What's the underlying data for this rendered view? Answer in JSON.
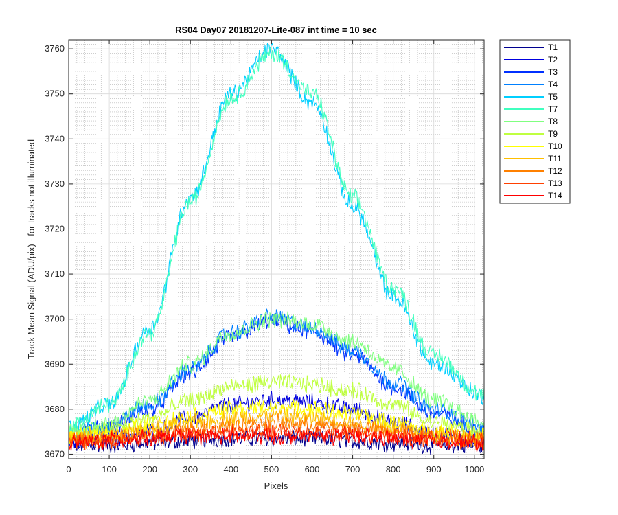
{
  "chart_data": {
    "type": "line",
    "title": "RS04 Day07 20181207-Lite-087 int time = 10 sec",
    "xlabel": "Pixels",
    "ylabel": "Track Mean Signal (ADU/pix) - for tracks not illuminated",
    "xlim": [
      0,
      1024
    ],
    "ylim": [
      3669,
      3762
    ],
    "xticks": [
      0,
      100,
      200,
      300,
      400,
      500,
      600,
      700,
      800,
      900,
      1000
    ],
    "yticks": [
      3670,
      3680,
      3690,
      3700,
      3710,
      3720,
      3730,
      3740,
      3750,
      3760
    ],
    "grid": true,
    "minor_grid": true,
    "legend_position": "outside-top-right",
    "series": [
      {
        "name": "T1",
        "color": "#00008f",
        "x": [
          0,
          100,
          200,
          300,
          400,
          500,
          600,
          700,
          800,
          900,
          1024
        ],
        "values": [
          3672,
          3672,
          3672.5,
          3673,
          3673.5,
          3673.5,
          3673.5,
          3673,
          3672.5,
          3672,
          3672
        ]
      },
      {
        "name": "T2",
        "color": "#0000df",
        "x": [
          0,
          100,
          200,
          300,
          400,
          500,
          600,
          700,
          800,
          900,
          1024
        ],
        "values": [
          3673,
          3673.5,
          3675,
          3678,
          3681,
          3682,
          3681.5,
          3680,
          3677,
          3674.5,
          3673
        ]
      },
      {
        "name": "T3",
        "color": "#0030ff",
        "x": [
          0,
          100,
          200,
          300,
          400,
          500,
          600,
          700,
          800,
          900,
          1024
        ],
        "values": [
          3674,
          3676,
          3680,
          3688,
          3696,
          3699.5,
          3697,
          3692,
          3685,
          3679,
          3675
        ]
      },
      {
        "name": "T4",
        "color": "#0080ff",
        "x": [
          0,
          100,
          200,
          300,
          400,
          500,
          600,
          700,
          800,
          900,
          1024
        ],
        "values": [
          3674.5,
          3676.5,
          3681,
          3689,
          3697,
          3700.5,
          3698,
          3693,
          3686,
          3680,
          3676
        ]
      },
      {
        "name": "T5",
        "color": "#00cfff",
        "x": [
          0,
          100,
          200,
          300,
          400,
          500,
          600,
          700,
          800,
          900,
          1024
        ],
        "values": [
          3676,
          3681,
          3698,
          3727,
          3750,
          3760,
          3748,
          3725,
          3705,
          3690,
          3683
        ]
      },
      {
        "name": "T7",
        "color": "#40ffbf",
        "x": [
          0,
          100,
          200,
          300,
          400,
          500,
          600,
          700,
          800,
          900,
          1024
        ],
        "values": [
          3676,
          3681,
          3697,
          3726,
          3749,
          3759,
          3750,
          3727,
          3707,
          3692,
          3683
        ]
      },
      {
        "name": "T8",
        "color": "#80ff80",
        "x": [
          0,
          100,
          200,
          300,
          400,
          500,
          600,
          700,
          800,
          900,
          1024
        ],
        "values": [
          3675,
          3677,
          3682,
          3690,
          3697,
          3700,
          3699,
          3695,
          3689,
          3682,
          3677
        ]
      },
      {
        "name": "T9",
        "color": "#bfff40",
        "x": [
          0,
          100,
          200,
          300,
          400,
          500,
          600,
          700,
          800,
          900,
          1024
        ],
        "values": [
          3674,
          3675.5,
          3678,
          3682,
          3685,
          3686,
          3685.5,
          3684,
          3681,
          3677,
          3675
        ]
      },
      {
        "name": "T10",
        "color": "#ffff00",
        "x": [
          0,
          100,
          200,
          300,
          400,
          500,
          600,
          700,
          800,
          900,
          1024
        ],
        "values": [
          3673.5,
          3674.5,
          3676.5,
          3678.5,
          3680,
          3680.5,
          3680,
          3679,
          3677,
          3675,
          3674
        ]
      },
      {
        "name": "T11",
        "color": "#ffbf00",
        "x": [
          0,
          100,
          200,
          300,
          400,
          500,
          600,
          700,
          800,
          900,
          1024
        ],
        "values": [
          3673.5,
          3674,
          3675.5,
          3677,
          3678,
          3678.5,
          3678,
          3677,
          3676,
          3674.5,
          3673.5
        ]
      },
      {
        "name": "T12",
        "color": "#ff8000",
        "x": [
          0,
          100,
          200,
          300,
          400,
          500,
          600,
          700,
          800,
          900,
          1024
        ],
        "values": [
          3673,
          3673.5,
          3674.5,
          3675.5,
          3676.5,
          3677,
          3676.5,
          3676,
          3675,
          3674,
          3673
        ]
      },
      {
        "name": "T13",
        "color": "#ff4000",
        "x": [
          0,
          100,
          200,
          300,
          400,
          500,
          600,
          700,
          800,
          900,
          1024
        ],
        "values": [
          3673,
          3673,
          3674,
          3674.5,
          3675,
          3675,
          3675,
          3674.5,
          3674,
          3673.5,
          3673
        ]
      },
      {
        "name": "T14",
        "color": "#ff0000",
        "x": [
          0,
          100,
          200,
          300,
          400,
          500,
          600,
          700,
          800,
          900,
          1024
        ],
        "values": [
          3672.5,
          3673,
          3673.5,
          3674,
          3674,
          3674,
          3674,
          3674,
          3673.5,
          3673,
          3672.5
        ]
      }
    ]
  }
}
